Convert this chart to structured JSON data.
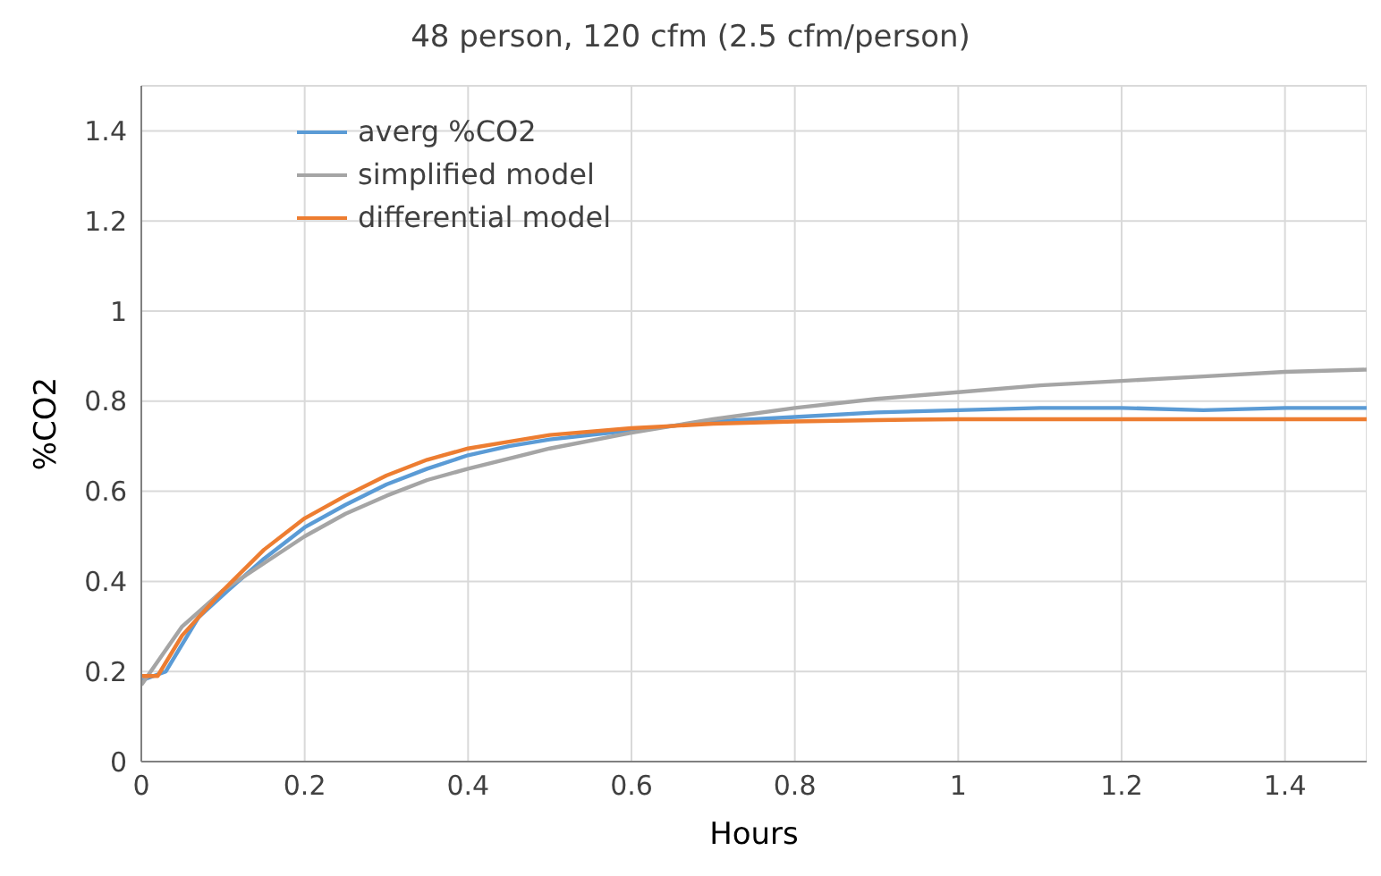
{
  "chart_data": {
    "type": "line",
    "title": "48 person, 120 cfm (2.5 cfm/person)",
    "xlabel": "Hours",
    "ylabel": "%CO2",
    "xlim": [
      0,
      1.5
    ],
    "xticks": [
      0,
      0.2,
      0.4,
      0.6,
      0.8,
      1,
      1.2,
      1.4
    ],
    "ylim": [
      0,
      1.5
    ],
    "yticks": [
      0,
      0.2,
      0.4,
      0.6,
      0.8,
      1,
      1.2,
      1.4
    ],
    "grid": true,
    "legend": "top left",
    "marker": "none",
    "line_style": "solid",
    "series": [
      {
        "name": "averg %CO2",
        "color": "#5b9bd5",
        "x": [
          0,
          0.03,
          0.07,
          0.1,
          0.15,
          0.2,
          0.25,
          0.3,
          0.35,
          0.4,
          0.45,
          0.5,
          0.6,
          0.7,
          0.8,
          0.9,
          1,
          1.1,
          1.2,
          1.3,
          1.4,
          1.5
        ],
        "values": [
          0.18,
          0.2,
          0.32,
          0.37,
          0.45,
          0.52,
          0.57,
          0.615,
          0.65,
          0.68,
          0.7,
          0.715,
          0.735,
          0.755,
          0.765,
          0.775,
          0.78,
          0.785,
          0.785,
          0.78,
          0.785,
          0.785
        ]
      },
      {
        "name": "simplified model",
        "color": "#a5a5a5",
        "x": [
          0,
          0.05,
          0.1,
          0.15,
          0.2,
          0.25,
          0.3,
          0.35,
          0.4,
          0.5,
          0.6,
          0.7,
          0.8,
          0.9,
          1,
          1.1,
          1.2,
          1.3,
          1.4,
          1.5
        ],
        "values": [
          0.17,
          0.3,
          0.38,
          0.44,
          0.5,
          0.55,
          0.59,
          0.625,
          0.65,
          0.695,
          0.73,
          0.76,
          0.785,
          0.805,
          0.82,
          0.835,
          0.845,
          0.855,
          0.865,
          0.87
        ]
      },
      {
        "name": "differential model",
        "color": "#ed7d31",
        "x": [
          0,
          0.02,
          0.05,
          0.1,
          0.15,
          0.2,
          0.25,
          0.3,
          0.35,
          0.4,
          0.45,
          0.5,
          0.6,
          0.7,
          0.8,
          0.9,
          1,
          1.2,
          1.5
        ],
        "values": [
          0.19,
          0.19,
          0.28,
          0.38,
          0.47,
          0.54,
          0.59,
          0.635,
          0.67,
          0.695,
          0.71,
          0.725,
          0.74,
          0.75,
          0.755,
          0.758,
          0.76,
          0.76,
          0.76
        ]
      }
    ]
  }
}
